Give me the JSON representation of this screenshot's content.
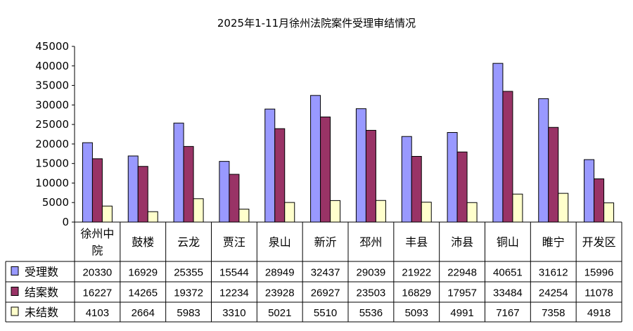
{
  "chart_data": {
    "type": "bar",
    "title": "2025年1-11月徐州法院案件受理审结情况",
    "categories": [
      "徐州中院",
      "鼓楼",
      "云龙",
      "贾汪",
      "泉山",
      "新沂",
      "邳州",
      "丰县",
      "沛县",
      "铜山",
      "睢宁",
      "开发区"
    ],
    "category_lines": [
      [
        "徐州中",
        "院"
      ],
      [
        "鼓楼"
      ],
      [
        "云龙"
      ],
      [
        "贾汪"
      ],
      [
        "泉山"
      ],
      [
        "新沂"
      ],
      [
        "邳州"
      ],
      [
        "丰县"
      ],
      [
        "沛县"
      ],
      [
        "铜山"
      ],
      [
        "睢宁"
      ],
      [
        "开发区"
      ]
    ],
    "series": [
      {
        "name": "受理数",
        "color": "#9999ff",
        "values": [
          20330,
          16929,
          25355,
          15544,
          28949,
          32437,
          29039,
          21922,
          22948,
          40651,
          31612,
          15996
        ]
      },
      {
        "name": "结案数",
        "color": "#993366",
        "values": [
          16227,
          14265,
          19372,
          12234,
          23928,
          26927,
          23503,
          16829,
          17957,
          33484,
          24254,
          11078
        ]
      },
      {
        "name": "未结数",
        "color": "#ffffcc",
        "values": [
          4103,
          2664,
          5983,
          3310,
          5021,
          5510,
          5536,
          5093,
          4991,
          7167,
          7358,
          4918
        ]
      }
    ],
    "ylim": [
      0,
      45000
    ],
    "yticks": [
      "0",
      "5000",
      "10000",
      "15000",
      "20000",
      "25000",
      "30000",
      "35000",
      "40000",
      "45000"
    ],
    "xlabel": "",
    "ylabel": "",
    "grid": false,
    "data_table": true,
    "legend": "data-table"
  }
}
